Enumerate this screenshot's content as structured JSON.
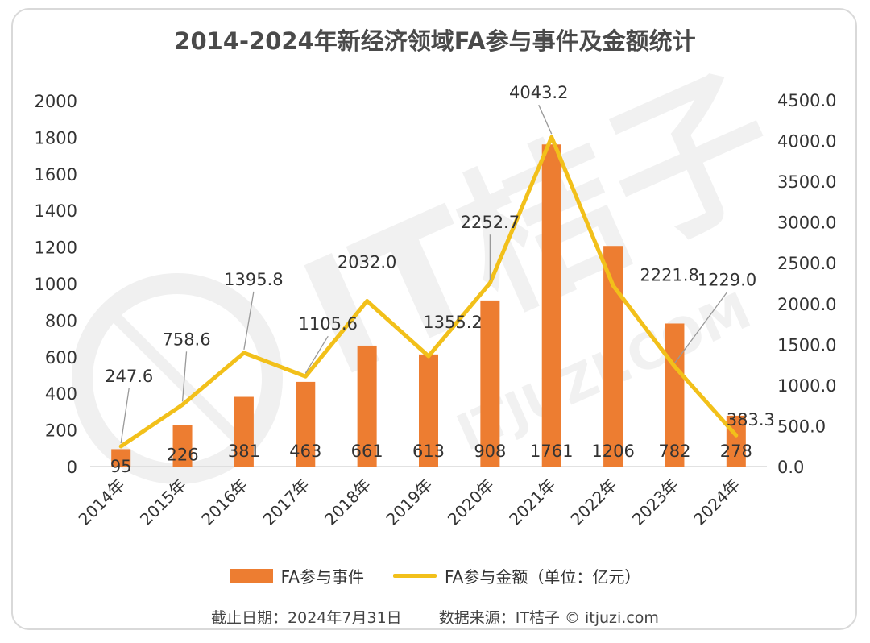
{
  "chart_data": {
    "type": "bar",
    "title": "2014-2024年新经济领域FA参与事件及金额统计",
    "categories": [
      "2014年",
      "2015年",
      "2016年",
      "2017年",
      "2018年",
      "2019年",
      "2020年",
      "2021年",
      "2022年",
      "2023年",
      "2024年"
    ],
    "series": [
      {
        "name": "FA参与事件",
        "type": "bar",
        "axis": "left",
        "color": "#ED7D31",
        "values": [
          95,
          226,
          381,
          463,
          661,
          613,
          908,
          1761,
          1206,
          782,
          278
        ],
        "labels": [
          "95",
          "226",
          "381",
          "463",
          "661",
          "613",
          "908",
          "1761",
          "1206",
          "782",
          "278"
        ]
      },
      {
        "name": "FA参与金额（单位：亿元）",
        "type": "line",
        "axis": "right",
        "color": "#F2C01A",
        "values": [
          247.6,
          758.6,
          1395.8,
          1105.6,
          2032.0,
          1355.2,
          2252.7,
          4043.2,
          2221.8,
          1229.0,
          383.3
        ],
        "labels": [
          "247.6",
          "758.6",
          "1395.8",
          "1105.6",
          "2032.0",
          "1355.2",
          "2252.7",
          "4043.2",
          "2221.8",
          "1229.0",
          "383.3"
        ]
      }
    ],
    "y_left": {
      "ylim": [
        0,
        2000
      ],
      "ticks": [
        "0",
        "200",
        "400",
        "600",
        "800",
        "1000",
        "1200",
        "1400",
        "1600",
        "1800",
        "2000"
      ]
    },
    "y_right": {
      "ylim": [
        0,
        4500
      ],
      "ticks": [
        "0.0",
        "500.0",
        "1000.0",
        "1500.0",
        "2000.0",
        "2500.0",
        "3000.0",
        "3500.0",
        "4000.0",
        "4500.0"
      ]
    },
    "grid": false,
    "legend_position": "bottom"
  },
  "watermark": {
    "text_1": "IT桔子",
    "text_2": "ITJUZI.COM"
  },
  "footer": {
    "date_label": "截止日期：2024年7月31日",
    "source_label": "数据来源：IT桔子 © itjuzi.com"
  }
}
